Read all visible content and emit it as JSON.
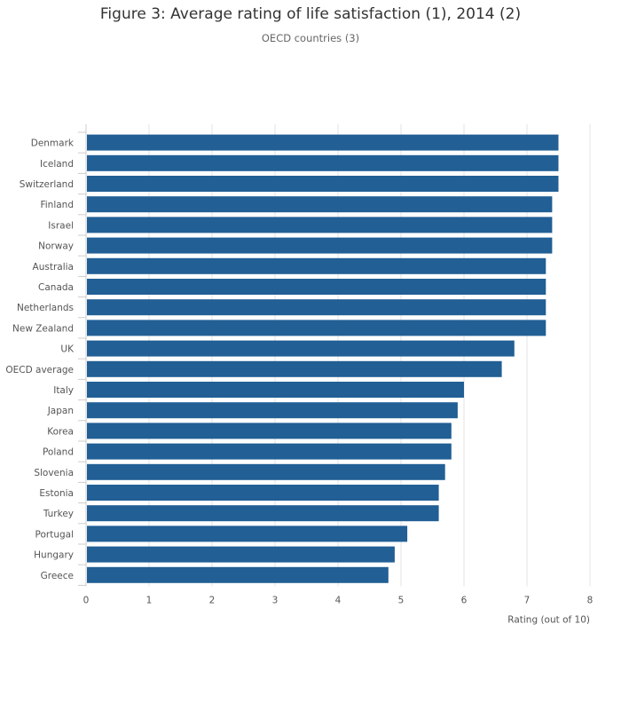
{
  "chart_data": {
    "type": "bar",
    "orientation": "horizontal",
    "title": "Figure 3: Average rating of life satisfaction (1), 2014 (2)",
    "subtitle": "OECD countries (3)",
    "xlabel": "Rating (out of 10)",
    "ylabel": "",
    "xlim": [
      0,
      8
    ],
    "xticks": [
      "0",
      "1",
      "2",
      "3",
      "4",
      "5",
      "6",
      "7",
      "8"
    ],
    "grid": true,
    "bar_color": "#215f95",
    "categories": [
      "Denmark",
      "Iceland",
      "Switzerland",
      "Finland",
      "Israel",
      "Norway",
      "Australia",
      "Canada",
      "Netherlands",
      "New Zealand",
      "UK",
      "OECD average",
      "Italy",
      "Japan",
      "Korea",
      "Poland",
      "Slovenia",
      "Estonia",
      "Turkey",
      "Portugal",
      "Hungary",
      "Greece"
    ],
    "values": [
      7.5,
      7.5,
      7.5,
      7.4,
      7.4,
      7.4,
      7.3,
      7.3,
      7.3,
      7.3,
      6.8,
      6.6,
      6.0,
      5.9,
      5.8,
      5.8,
      5.7,
      5.6,
      5.6,
      5.1,
      4.9,
      4.8
    ]
  }
}
